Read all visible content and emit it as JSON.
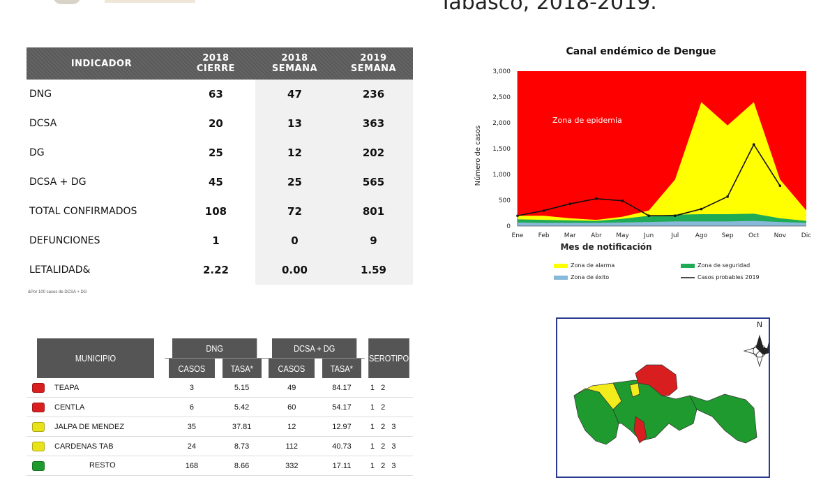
{
  "heading": "Tabasco, 2018-2019.",
  "indicator_table": {
    "headers": [
      {
        "line1": "INDICADOR",
        "line2": ""
      },
      {
        "line1": "2018",
        "line2": "CIERRE"
      },
      {
        "line1": "2018",
        "line2": "SEMANA"
      },
      {
        "line1": "2019",
        "line2": "SEMANA"
      }
    ],
    "rows": [
      {
        "label": "DNG",
        "v1": "63",
        "v2": "47",
        "v3": "236"
      },
      {
        "label": "DCSA",
        "v1": "20",
        "v2": "13",
        "v3": "363"
      },
      {
        "label": "DG",
        "v1": "25",
        "v2": "12",
        "v3": "202"
      },
      {
        "label": "DCSA + DG",
        "v1": "45",
        "v2": "25",
        "v3": "565"
      },
      {
        "label": "TOTAL CONFIRMADOS",
        "v1": "108",
        "v2": "72",
        "v3": "801"
      },
      {
        "label": "DEFUNCIONES",
        "v1": "1",
        "v2": "0",
        "v3": "9"
      },
      {
        "label": "LETALIDAD&",
        "v1": "2.22",
        "v2": "0.00",
        "v3": "1.59"
      }
    ],
    "footnote": "&Por 100 casos de DCSA + DG"
  },
  "municipio_table": {
    "headers": {
      "municipio": "MUNICIPIO",
      "dng": "DNG",
      "dcsa_dg": "DCSA + DG",
      "serotipo": "SEROTIPO",
      "casos": "CASOS",
      "tasa": "TASA*"
    },
    "rows": [
      {
        "color": "#d81e1e",
        "name": "TEAPA",
        "casos1": "3",
        "tasa1": "5.15",
        "casos2": "49",
        "tasa2": "84.17",
        "serotipo": "1   2"
      },
      {
        "color": "#d81e1e",
        "name": "CENTLA",
        "casos1": "6",
        "tasa1": "5.42",
        "casos2": "60",
        "tasa2": "54.17",
        "serotipo": "1   2"
      },
      {
        "color": "#e8e21a",
        "name": "JALPA DE MENDEZ",
        "casos1": "35",
        "tasa1": "37.81",
        "casos2": "12",
        "tasa2": "12.97",
        "serotipo": "1   2   3"
      },
      {
        "color": "#e8e21a",
        "name": "CARDENAS TAB",
        "casos1": "24",
        "tasa1": "8.73",
        "casos2": "112",
        "tasa2": "40.73",
        "serotipo": "1   2   3"
      },
      {
        "color": "#1e9a2e",
        "name": "RESTO",
        "casos1": "168",
        "tasa1": "8.66",
        "casos2": "332",
        "tasa2": "17.11",
        "serotipo": "1   2   3"
      }
    ]
  },
  "chart_data": {
    "type": "area",
    "title": "Canal endémico de Dengue",
    "xlabel": "Mes de notificación",
    "ylabel": "Número de casos",
    "ylim": [
      0,
      3000
    ],
    "yticks": [
      "0",
      "500",
      "1,000",
      "1,500",
      "2,000",
      "2,500",
      "3,000"
    ],
    "categories": [
      "Ene",
      "Feb",
      "Mar",
      "Abr",
      "May",
      "Jun",
      "Jul",
      "Ago",
      "Sep",
      "Oct",
      "Nov",
      "Dic"
    ],
    "zone_label": "Zona de epidemia",
    "series": [
      {
        "name": "Zona de alarma",
        "color": "#ffff00",
        "values": [
          200,
          200,
          150,
          120,
          180,
          300,
          900,
          2400,
          1950,
          2400,
          900,
          300
        ]
      },
      {
        "name": "Zona de seguridad",
        "color": "#1faa55",
        "values": [
          130,
          120,
          110,
          100,
          140,
          200,
          220,
          230,
          230,
          240,
          150,
          100
        ]
      },
      {
        "name": "Zona de éxito",
        "color": "#87b9d8",
        "values": [
          70,
          60,
          60,
          60,
          70,
          80,
          90,
          90,
          90,
          100,
          80,
          60
        ]
      },
      {
        "name": "Casos probables 2019",
        "color": "#111111",
        "values": [
          200,
          300,
          430,
          530,
          490,
          200,
          200,
          330,
          570,
          1580,
          780,
          null
        ]
      }
    ],
    "legend_position": "bottom"
  },
  "map": {
    "north_label": "N"
  }
}
